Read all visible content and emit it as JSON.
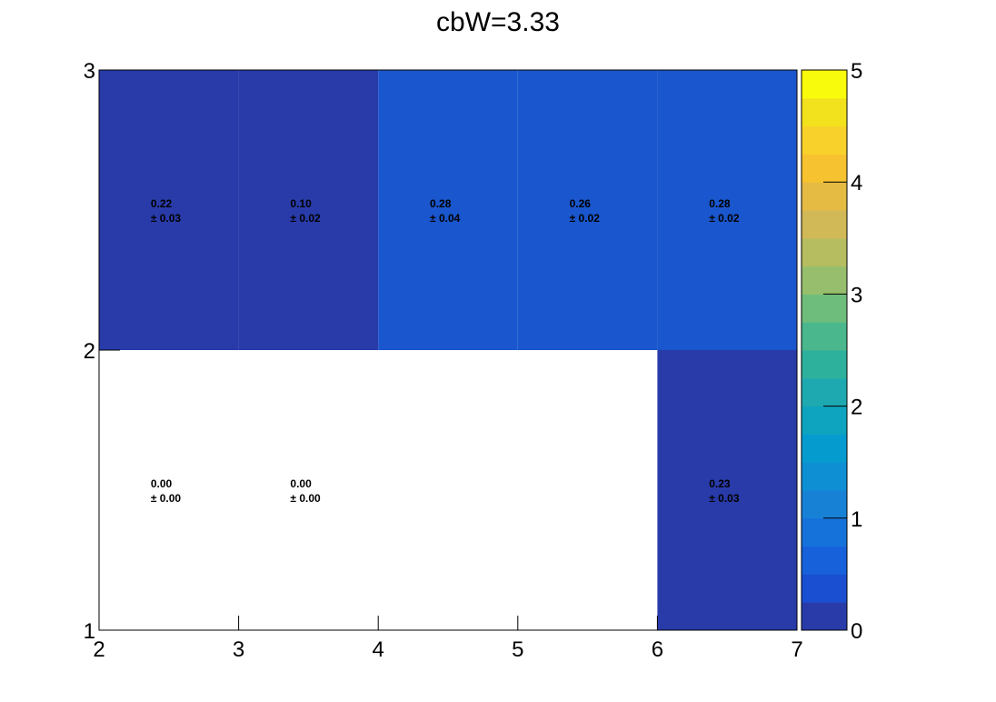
{
  "chart_data": {
    "type": "heatmap",
    "title": "cbW=3.33",
    "xlabel": "",
    "ylabel": "",
    "xlim": [
      2,
      7
    ],
    "ylim": [
      1,
      3
    ],
    "x_ticks": [
      2,
      3,
      4,
      5,
      6,
      7
    ],
    "y_ticks": [
      1,
      2,
      3
    ],
    "x_bins": [
      2,
      3,
      4,
      5,
      6,
      7
    ],
    "y_bins": [
      1,
      2,
      3
    ],
    "cells": [
      {
        "x": [
          2,
          3
        ],
        "y": [
          2,
          3
        ],
        "value": 0.22,
        "error": 0.03,
        "label": "0.22",
        "err_label": "± 0.03",
        "color": "#293ba9"
      },
      {
        "x": [
          3,
          4
        ],
        "y": [
          2,
          3
        ],
        "value": 0.1,
        "error": 0.02,
        "label": "0.10",
        "err_label": "± 0.02",
        "color": "#293ba9"
      },
      {
        "x": [
          4,
          5
        ],
        "y": [
          2,
          3
        ],
        "value": 0.28,
        "error": 0.04,
        "label": "0.28",
        "err_label": "± 0.04",
        "color": "#1a56cd"
      },
      {
        "x": [
          5,
          6
        ],
        "y": [
          2,
          3
        ],
        "value": 0.26,
        "error": 0.02,
        "label": "0.26",
        "err_label": "± 0.02",
        "color": "#1a56cd"
      },
      {
        "x": [
          6,
          7
        ],
        "y": [
          2,
          3
        ],
        "value": 0.28,
        "error": 0.02,
        "label": "0.28",
        "err_label": "± 0.02",
        "color": "#1a56cd"
      },
      {
        "x": [
          2,
          3
        ],
        "y": [
          1,
          2
        ],
        "value": 0.0,
        "error": 0.0,
        "label": "0.00",
        "err_label": "± 0.00",
        "color": null
      },
      {
        "x": [
          3,
          4
        ],
        "y": [
          1,
          2
        ],
        "value": 0.0,
        "error": 0.0,
        "label": "0.00",
        "err_label": "± 0.00",
        "color": null
      },
      {
        "x": [
          4,
          5
        ],
        "y": [
          1,
          2
        ],
        "value": null,
        "error": null,
        "label": "",
        "err_label": "",
        "color": null
      },
      {
        "x": [
          5,
          6
        ],
        "y": [
          1,
          2
        ],
        "value": null,
        "error": null,
        "label": "",
        "err_label": "",
        "color": null
      },
      {
        "x": [
          6,
          7
        ],
        "y": [
          1,
          2
        ],
        "value": 0.23,
        "error": 0.03,
        "label": "0.23",
        "err_label": "± 0.03",
        "color": "#293ba9"
      }
    ],
    "colorbar": {
      "range": [
        0,
        5
      ],
      "ticks": [
        0,
        1,
        2,
        3,
        4,
        5
      ],
      "colors": [
        "#293ba9",
        "#1a4fd2",
        "#1761db",
        "#1672db",
        "#1781d6",
        "#0e8fd3",
        "#069bcf",
        "#0ea4c0",
        "#1ea9b0",
        "#2db19c",
        "#4ab88c",
        "#6fbd7c",
        "#96be6c",
        "#b5bd60",
        "#d2b957",
        "#e5bb44",
        "#f7c22f",
        "#f9d12b",
        "#f2e21d",
        "#f9fb0d"
      ]
    },
    "grid": false
  }
}
